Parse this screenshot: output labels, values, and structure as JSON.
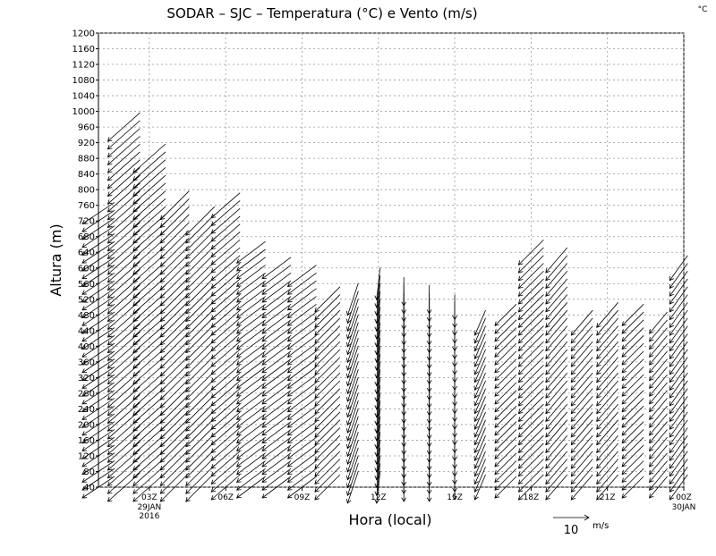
{
  "chart_data": {
    "type": "vector",
    "title": "SODAR – SJC – Temperatura (°C) e Vento (m/s)",
    "corner_label": "°C",
    "y_label": "Altura (m)",
    "x_label": "Hora (local)",
    "ylim": [
      40,
      1200
    ],
    "yticks": [
      40,
      80,
      120,
      160,
      200,
      240,
      280,
      320,
      360,
      400,
      440,
      480,
      520,
      560,
      600,
      640,
      680,
      720,
      760,
      800,
      840,
      880,
      920,
      960,
      1000,
      1040,
      1080,
      1120,
      1160,
      1200
    ],
    "xlim": [
      1,
      24
    ],
    "xticks": [
      {
        "value": 3,
        "label": "03Z"
      },
      {
        "value": 6,
        "label": "06Z"
      },
      {
        "value": 9,
        "label": "09Z"
      },
      {
        "value": 12,
        "label": "12Z"
      },
      {
        "value": 15,
        "label": "15Z"
      },
      {
        "value": 18,
        "label": "18Z"
      },
      {
        "value": 21,
        "label": "21Z"
      },
      {
        "value": 24,
        "label": "00Z"
      }
    ],
    "x_date_labels": [
      {
        "value": 3,
        "lines": [
          "29JAN",
          "2016"
        ]
      },
      {
        "value": 24,
        "lines": [
          "30JAN"
        ]
      }
    ],
    "level_step": 20,
    "winds": [
      {
        "x": 1,
        "top": 740,
        "u": -9,
        "v": -6
      },
      {
        "x": 2,
        "top": 960,
        "u": -9,
        "v": -8
      },
      {
        "x": 3,
        "top": 880,
        "u": -9,
        "v": -8
      },
      {
        "x": 4,
        "top": 760,
        "u": -8,
        "v": -8
      },
      {
        "x": 5,
        "top": 720,
        "u": -8,
        "v": -8
      },
      {
        "x": 6,
        "top": 760,
        "u": -8,
        "v": -7
      },
      {
        "x": 7,
        "top": 640,
        "u": -8,
        "v": -6
      },
      {
        "x": 8,
        "top": 600,
        "u": -8,
        "v": -6
      },
      {
        "x": 9,
        "top": 580,
        "u": -8,
        "v": -6
      },
      {
        "x": 10,
        "top": 520,
        "u": -7,
        "v": -7
      },
      {
        "x": 11,
        "top": 520,
        "u": -3,
        "v": -9
      },
      {
        "x": 12,
        "top": 560,
        "u": -1,
        "v": -9
      },
      {
        "x": 13,
        "top": 540,
        "u": 0,
        "v": -8
      },
      {
        "x": 14,
        "top": 520,
        "u": 0,
        "v": -8
      },
      {
        "x": 15,
        "top": 500,
        "u": 0,
        "v": -7
      },
      {
        "x": 16,
        "top": 460,
        "u": -3,
        "v": -7
      },
      {
        "x": 17,
        "top": 480,
        "u": -6,
        "v": -6
      },
      {
        "x": 18,
        "top": 640,
        "u": -7,
        "v": -7
      },
      {
        "x": 19,
        "top": 620,
        "u": -6,
        "v": -7
      },
      {
        "x": 20,
        "top": 460,
        "u": -6,
        "v": -7
      },
      {
        "x": 21,
        "top": 480,
        "u": -6,
        "v": -7
      },
      {
        "x": 22,
        "top": 480,
        "u": -6,
        "v": -6
      },
      {
        "x": 23,
        "top": 460,
        "u": -5,
        "v": -6
      },
      {
        "x": 23.8,
        "top": 600,
        "u": -5,
        "v": -7
      }
    ],
    "ref_vector": {
      "value": 10,
      "unit": "m/s"
    }
  }
}
